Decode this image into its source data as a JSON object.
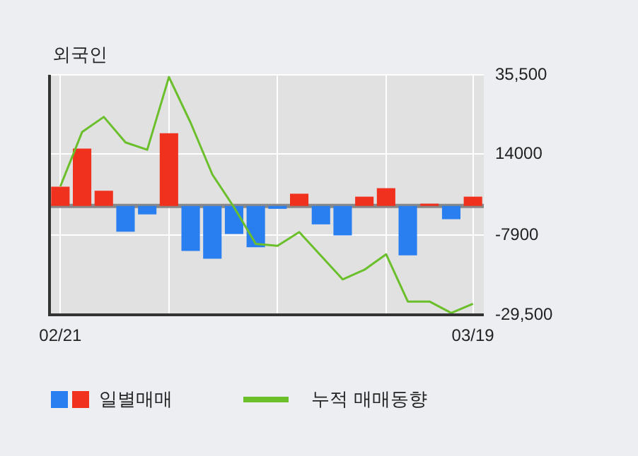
{
  "chart_data": {
    "type": "bar",
    "title": "외국인",
    "categories": [
      "02/21",
      null,
      null,
      null,
      null,
      null,
      null,
      null,
      null,
      null,
      null,
      null,
      null,
      null,
      null,
      null,
      null,
      null,
      null,
      "03/19"
    ],
    "series": [
      {
        "name": "일별매매",
        "values": [
          5200,
          15500,
          4100,
          -7000,
          -2300,
          19700,
          -12200,
          -14300,
          -7600,
          -11200,
          -800,
          3300,
          -5000,
          -8000,
          2500,
          4800,
          -13400,
          600,
          -3600,
          2500
        ],
        "colors": [
          "#f0311e",
          "#f0311e",
          "#f0311e",
          "#2a7ff0",
          "#2a7ff0",
          "#f0311e",
          "#2a7ff0",
          "#2a7ff0",
          "#2a7ff0",
          "#2a7ff0",
          "#2a7ff0",
          "#f0311e",
          "#2a7ff0",
          "#2a7ff0",
          "#f0311e",
          "#f0311e",
          "#2a7ff0",
          "#f0311e",
          "#2a7ff0",
          "#f0311e"
        ]
      },
      {
        "name": "누적 매매동향",
        "type": "line",
        "color": "#6abf2a",
        "values": [
          5300,
          20000,
          24100,
          17200,
          15200,
          34900,
          22500,
          8500,
          -400,
          -10300,
          -10800,
          -7100,
          -13500,
          -19900,
          -17300,
          -13100,
          -25900,
          -25900,
          -29000,
          -26500
        ]
      }
    ],
    "ylim": [
      -29500,
      35500
    ],
    "yticks": [
      {
        "value": -29500,
        "label": "-29,500"
      },
      -7900,
      14000,
      {
        "value": 35500,
        "label": "35,500"
      }
    ],
    "ref_lines": [
      {
        "axis": "y",
        "value": 0,
        "color": "#888888"
      }
    ],
    "grid": true,
    "legend": "bottom",
    "marker": "none"
  }
}
